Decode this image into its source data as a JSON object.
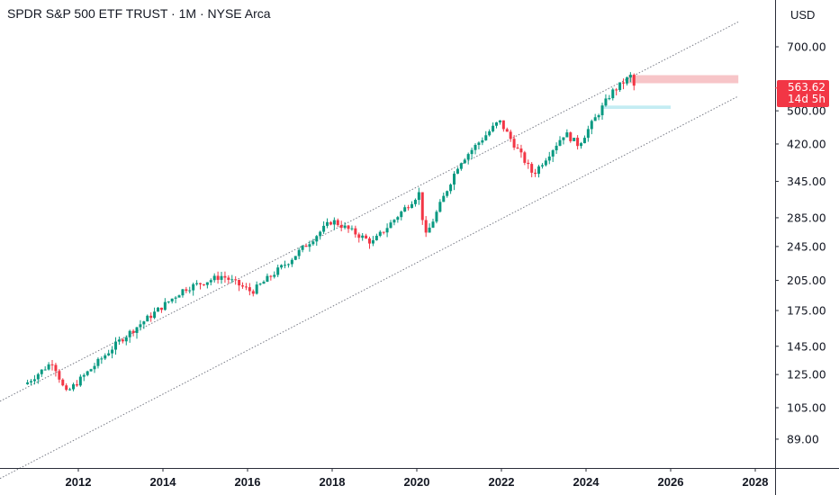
{
  "header": {
    "title": "SPDR S&P 500 ETF TRUST · 1M · NYSE Arca",
    "currency": "USD"
  },
  "price_badge": {
    "price": "563.62",
    "countdown": "14d 5h"
  },
  "colors": {
    "up": "#089981",
    "down": "#f23645",
    "channel": "#787b86",
    "resistance_zone": "#f7c5c8",
    "support_zone": "#c4ecf3",
    "badge": "#f23645"
  },
  "chart_data": {
    "type": "candlestick",
    "symbol": "SPDR S&P 500 ETF TRUST",
    "interval": "1M",
    "exchange": "NYSE Arca",
    "y_scale": "log",
    "y_ticks": [
      89,
      105,
      125,
      145,
      175,
      205,
      245,
      285,
      345,
      420,
      500,
      700
    ],
    "y_tick_labels": [
      "89.00",
      "105.00",
      "125.00",
      "145.00",
      "175.00",
      "205.00",
      "245.00",
      "285.00",
      "345.00",
      "420.00",
      "500.00",
      "700.00"
    ],
    "x_ticks": [
      2012,
      2014,
      2016,
      2018,
      2020,
      2022,
      2024,
      2026,
      2028
    ],
    "x_tick_labels": [
      "2012",
      "2014",
      "2016",
      "2018",
      "2020",
      "2022",
      "2024",
      "2026",
      "2028"
    ],
    "last_price": 563.62,
    "key_points": [
      {
        "date": "2010.80",
        "close": 120
      },
      {
        "date": "2011.40",
        "close": 134
      },
      {
        "date": "2011.70",
        "close": 113
      },
      {
        "date": "2013.00",
        "close": 150
      },
      {
        "date": "2014.50",
        "close": 196
      },
      {
        "date": "2015.40",
        "close": 210
      },
      {
        "date": "2016.10",
        "close": 193
      },
      {
        "date": "2017.00",
        "close": 228
      },
      {
        "date": "2018.00",
        "close": 281
      },
      {
        "date": "2018.95",
        "close": 250
      },
      {
        "date": "2020.05",
        "close": 324
      },
      {
        "date": "2020.20",
        "close": 257
      },
      {
        "date": "2021.00",
        "close": 380
      },
      {
        "date": "2021.95",
        "close": 474
      },
      {
        "date": "2022.75",
        "close": 358
      },
      {
        "date": "2023.50",
        "close": 445
      },
      {
        "date": "2023.82",
        "close": 418
      },
      {
        "date": "2024.60",
        "close": 550
      },
      {
        "date": "2025.05",
        "close": 600
      },
      {
        "date": "2025.15",
        "close": 563.62
      }
    ],
    "channel_upper": [
      {
        "date": "2010.80",
        "value": 117
      },
      {
        "date": "2027.60",
        "value": 798
      }
    ],
    "channel_lower": [
      {
        "date": "2010.80",
        "value": 78
      },
      {
        "date": "2027.60",
        "value": 540
      }
    ],
    "resistance_zone": {
      "from": "2025.00",
      "to": "2027.60",
      "low": 578,
      "high": 603
    },
    "support_zone": {
      "from": "2024.40",
      "to": "2026.00",
      "low": 505,
      "high": 514
    }
  }
}
